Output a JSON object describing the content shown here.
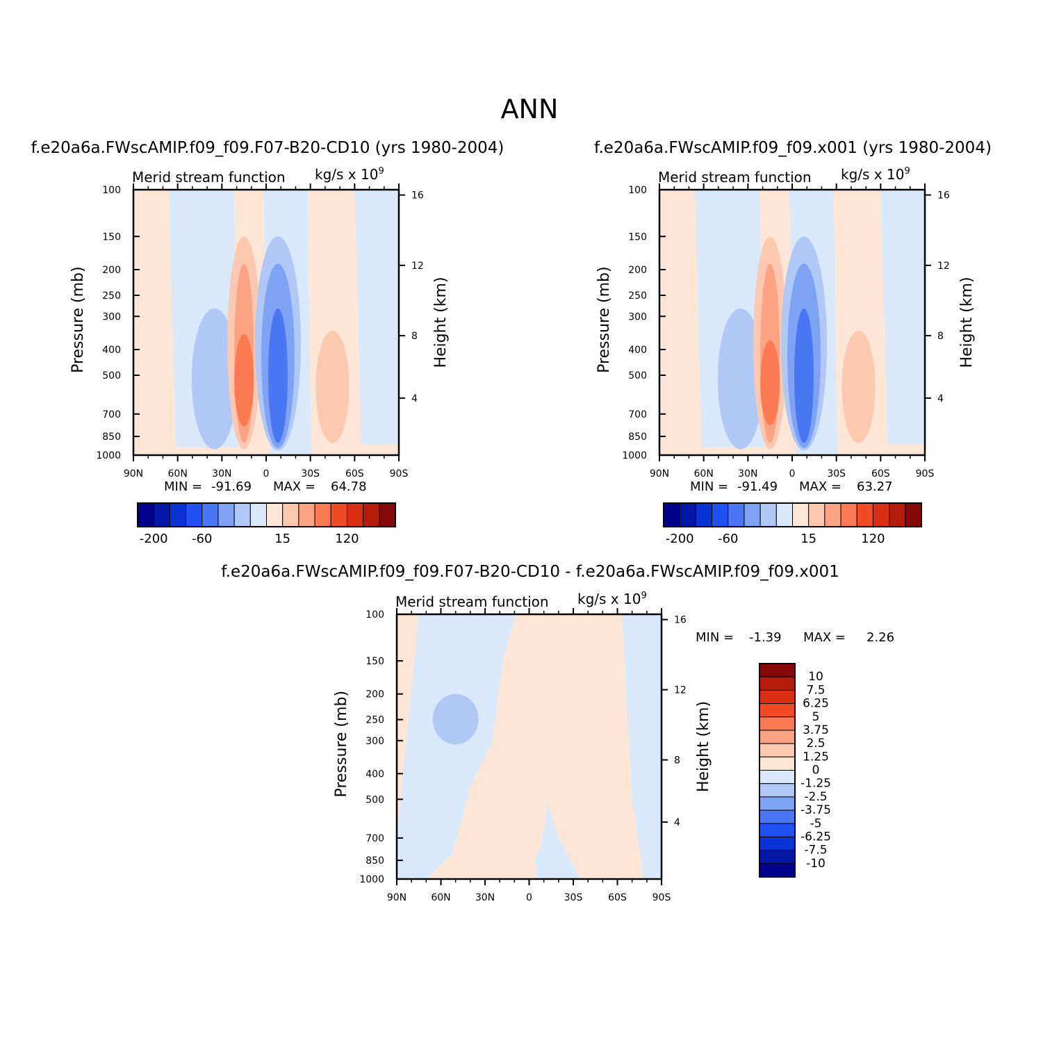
{
  "figure_title": "ANN",
  "panel_left_title": "f.e20a6a.FWscAMIP.f09_f09.F07-B20-CD10 (yrs 1980-2004)",
  "panel_right_title": "f.e20a6a.FWscAMIP.f09_f09.x001 (yrs 1980-2004)",
  "panel_diff_title": "f.e20a6a.FWscAMIP.f09_f09.F07-B20-CD10 - f.e20a6a.FWscAMIP.f09_f09.x001",
  "plot_label": "Merid stream function",
  "units_label": "kg/s x 10",
  "units_exponent": "9",
  "colors": {
    "-10": "#00008c",
    "-7.5": "#0017a8",
    "-6.25": "#0a33d6",
    "-5": "#1f52f4",
    "-3.75": "#4a78f4",
    "-2.5": "#7ea3f4",
    "-1.25": "#b0c8f5",
    "0": "#d8e9fc",
    "1.25": "#fde6d6",
    "2.5": "#fcc8b0",
    "3.75": "#fca383",
    "5": "#fb7a52",
    "6.25": "#f34a26",
    "7.5": "#db2f14",
    "10": "#b51c0a",
    "top": "#860707"
  },
  "left_stats": {
    "min_label": "MIN =",
    "min_value": "-91.69",
    "max_label": "MAX =",
    "max_value": "64.78"
  },
  "right_stats": {
    "min_label": "MIN =",
    "min_value": "-91.49",
    "max_label": "MAX =",
    "max_value": "63.27"
  },
  "diff_stats": {
    "min_label": "MIN =",
    "min_value": "-1.39",
    "max_label": "MAX =",
    "max_value": "2.26"
  },
  "chart_data": [
    {
      "type": "heatmap",
      "title": "Merid stream function",
      "subtitle": "f.e20a6a.FWscAMIP.f09_f09.F07-B20-CD10 (yrs 1980-2004)",
      "units": "kg/s x 10^9",
      "xlabel": "",
      "ylabel": "Pressure (mb)",
      "y2label": "Height (km)",
      "x_ticks": [
        "90N",
        "60N",
        "30N",
        "0",
        "30S",
        "60S",
        "90S"
      ],
      "x_range": [
        90,
        -90
      ],
      "y_ticks": [
        "100",
        "150",
        "200",
        "250",
        "300",
        "400",
        "500",
        "700",
        "850",
        "1000"
      ],
      "y_range": [
        1000,
        100
      ],
      "y_scale": "log",
      "y2_ticks": [
        "4",
        "8",
        "12",
        "16"
      ],
      "colorbar_labels": [
        "-200",
        "-60",
        "15",
        "120"
      ],
      "min": -91.69,
      "max": 64.78,
      "cells": [
        {
          "lat": 35,
          "level": "-1.25",
          "p_top": 280,
          "p_bot": 950
        },
        {
          "lat": 15,
          "level": "2.5",
          "p_top": 150,
          "p_bot": 950
        },
        {
          "lat": 15,
          "level": "3.75",
          "p_top": 190,
          "p_bot": 900
        },
        {
          "lat": 15,
          "level": "5",
          "p_top": 350,
          "p_bot": 780
        },
        {
          "lat": -8,
          "level": "-1.25",
          "p_top": 150,
          "p_bot": 960
        },
        {
          "lat": -8,
          "level": "-2.5",
          "p_top": 190,
          "p_bot": 940
        },
        {
          "lat": -8,
          "level": "-3.75",
          "p_top": 280,
          "p_bot": 900
        },
        {
          "lat": -45,
          "level": "1.25",
          "p_top": 240,
          "p_bot": 960
        },
        {
          "lat": -45,
          "level": "2.5",
          "p_top": 340,
          "p_bot": 900
        }
      ]
    },
    {
      "type": "heatmap",
      "title": "Merid stream function",
      "subtitle": "f.e20a6a.FWscAMIP.f09_f09.x001 (yrs 1980-2004)",
      "units": "kg/s x 10^9",
      "xlabel": "",
      "ylabel": "Pressure (mb)",
      "y2label": "Height (km)",
      "x_ticks": [
        "90N",
        "60N",
        "30N",
        "0",
        "30S",
        "60S",
        "90S"
      ],
      "x_range": [
        90,
        -90
      ],
      "y_ticks": [
        "100",
        "150",
        "200",
        "250",
        "300",
        "400",
        "500",
        "700",
        "850",
        "1000"
      ],
      "y_range": [
        1000,
        100
      ],
      "y_scale": "log",
      "y2_ticks": [
        "4",
        "8",
        "12",
        "16"
      ],
      "colorbar_labels": [
        "-200",
        "-60",
        "15",
        "120"
      ],
      "min": -91.49,
      "max": 63.27,
      "cells": [
        {
          "lat": 35,
          "level": "-1.25",
          "p_top": 280,
          "p_bot": 950
        },
        {
          "lat": 15,
          "level": "2.5",
          "p_top": 150,
          "p_bot": 950
        },
        {
          "lat": 15,
          "level": "3.75",
          "p_top": 190,
          "p_bot": 900
        },
        {
          "lat": 15,
          "level": "5",
          "p_top": 370,
          "p_bot": 770
        },
        {
          "lat": -8,
          "level": "-1.25",
          "p_top": 150,
          "p_bot": 960
        },
        {
          "lat": -8,
          "level": "-2.5",
          "p_top": 190,
          "p_bot": 940
        },
        {
          "lat": -8,
          "level": "-3.75",
          "p_top": 280,
          "p_bot": 900
        },
        {
          "lat": -45,
          "level": "1.25",
          "p_top": 240,
          "p_bot": 960
        },
        {
          "lat": -45,
          "level": "2.5",
          "p_top": 340,
          "p_bot": 900
        }
      ]
    },
    {
      "type": "heatmap",
      "title": "Merid stream function",
      "subtitle": "f.e20a6a.FWscAMIP.f09_f09.F07-B20-CD10 - f.e20a6a.FWscAMIP.f09_f09.x001",
      "units": "kg/s x 10^9",
      "xlabel": "",
      "ylabel": "Pressure (mb)",
      "y2label": "Height (km)",
      "x_ticks": [
        "90N",
        "60N",
        "30N",
        "0",
        "30S",
        "60S",
        "90S"
      ],
      "x_range": [
        90,
        -90
      ],
      "y_ticks": [
        "100",
        "150",
        "200",
        "250",
        "300",
        "400",
        "500",
        "700",
        "850",
        "1000"
      ],
      "y_range": [
        1000,
        100
      ],
      "y_scale": "log",
      "y2_ticks": [
        "4",
        "8",
        "12",
        "16"
      ],
      "colorbar_labels": [
        "10",
        "7.5",
        "6.25",
        "5",
        "3.75",
        "2.5",
        "1.25",
        "0",
        "-1.25",
        "-2.5",
        "-3.75",
        "-5",
        "-6.25",
        "-7.5",
        "-10"
      ],
      "min": -1.39,
      "max": 2.26,
      "cells": [
        {
          "lat": 50,
          "level": "-1.25",
          "p_top": 200,
          "p_bot": 310
        },
        {
          "lat": 30,
          "level": "1.25",
          "p_top": 550,
          "p_bot": 960
        },
        {
          "lat": 3,
          "level": "1.25",
          "p_top": 230,
          "p_bot": 900
        }
      ]
    }
  ]
}
